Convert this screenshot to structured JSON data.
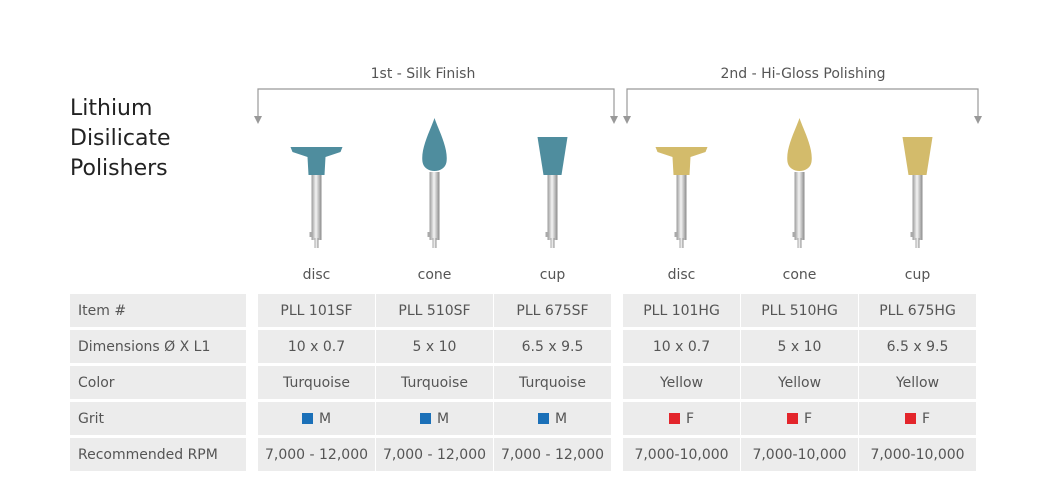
{
  "header": {
    "title": [
      "Lithium",
      "Disilicate",
      "Polishers"
    ]
  },
  "groups": [
    {
      "label": "1st - Silk Finish"
    },
    {
      "label": "2nd - Hi-Gloss Polishing"
    }
  ],
  "shapes": [
    "disc",
    "cone",
    "cup",
    "disc",
    "cone",
    "cup"
  ],
  "table": {
    "rows": [
      [
        "Item #",
        "PLL 101SF",
        "PLL 510SF",
        "PLL 675SF",
        "PLL 101HG",
        "PLL 510HG",
        "PLL 675HG"
      ],
      [
        "Dimensions Ø X L1",
        "10 x 0.7",
        "5 x 10",
        "6.5 x 9.5",
        "10 x 0.7",
        "5 x 10",
        "6.5 x 9.5"
      ],
      [
        "Color",
        "Turquoise",
        "Turquoise",
        "Turquoise",
        "Yellow",
        "Yellow",
        "Yellow"
      ],
      [
        "Grit",
        "M",
        "M",
        "M",
        "F",
        "F",
        "F"
      ],
      [
        "Recommended RPM",
        "7,000 - 12,000",
        "7,000 - 12,000",
        "7,000 - 12,000",
        "7,000-10,000",
        "7,000-10,000",
        "7,000-10,000"
      ]
    ]
  }
}
